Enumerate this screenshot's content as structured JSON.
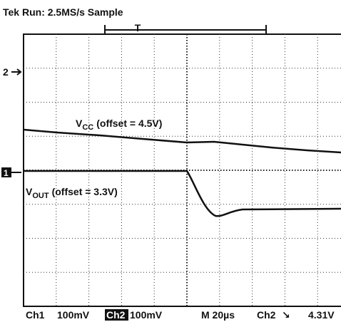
{
  "header": {
    "status": "Tek Run: 2.5MS/s Sample",
    "trigger_marker": "T"
  },
  "markers": {
    "ch2": "2",
    "ch1": "1"
  },
  "labels": {
    "vcc": {
      "symbol": "V",
      "subscript": "CC",
      "text": "(offset = 4.5V)"
    },
    "vout": {
      "symbol": "V",
      "subscript": "OUT",
      "text": "(offset = 3.3V)"
    }
  },
  "footer": {
    "ch1": "Ch1",
    "ch1_scale": "100mV",
    "ch2": "Ch2",
    "ch2_scale": "100mV",
    "timebase": "M 20µs",
    "trigger_source": "Ch2",
    "trigger_slope": "↘",
    "trigger_level": "4.31V"
  }
}
